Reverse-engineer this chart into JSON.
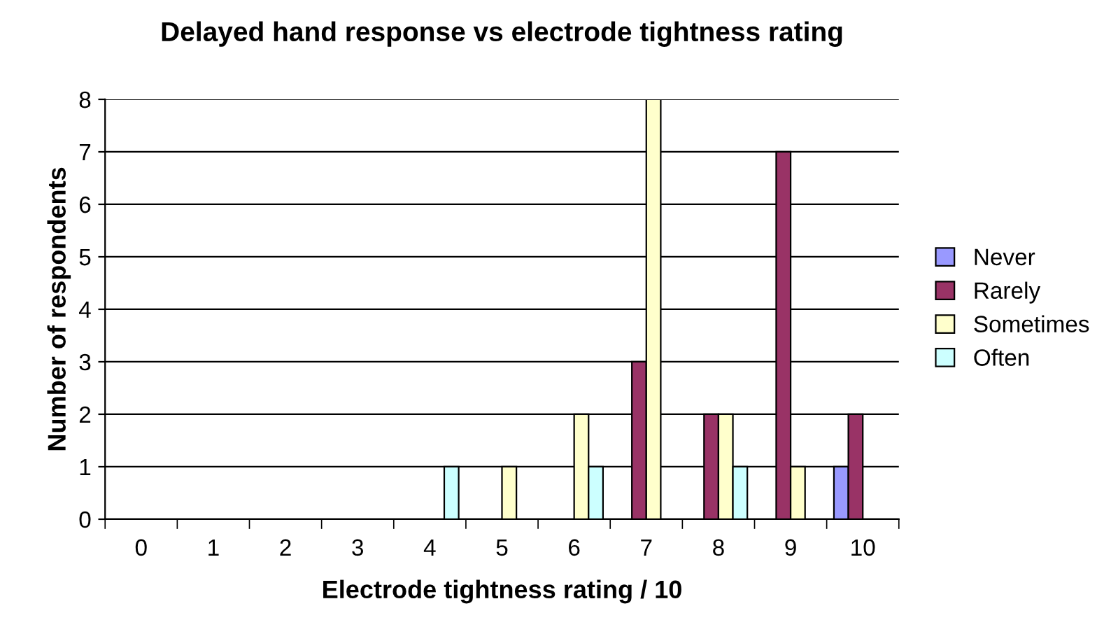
{
  "chart_data": {
    "type": "bar",
    "title": "Delayed hand response vs electrode tightness rating",
    "xlabel": "Electrode tightness rating / 10",
    "ylabel": "Number of respondents",
    "categories": [
      "0",
      "1",
      "2",
      "3",
      "4",
      "5",
      "6",
      "7",
      "8",
      "9",
      "10"
    ],
    "series": [
      {
        "name": "Never",
        "color": "#9999ff",
        "values": [
          null,
          null,
          null,
          null,
          null,
          null,
          null,
          null,
          null,
          null,
          1
        ]
      },
      {
        "name": "Rarely",
        "color": "#993366",
        "values": [
          null,
          null,
          null,
          null,
          null,
          null,
          null,
          3,
          2,
          7,
          2
        ]
      },
      {
        "name": "Sometimes",
        "color": "#ffffcc",
        "values": [
          null,
          null,
          null,
          null,
          null,
          1,
          2,
          8,
          2,
          1,
          null
        ]
      },
      {
        "name": "Often",
        "color": "#ccffff",
        "values": [
          null,
          null,
          null,
          null,
          1,
          null,
          1,
          null,
          1,
          null,
          null
        ]
      }
    ],
    "ylim": [
      0,
      8
    ],
    "yticks": [
      0,
      1,
      2,
      3,
      4,
      5,
      6,
      7,
      8
    ],
    "grid": "y",
    "legend": "right"
  }
}
